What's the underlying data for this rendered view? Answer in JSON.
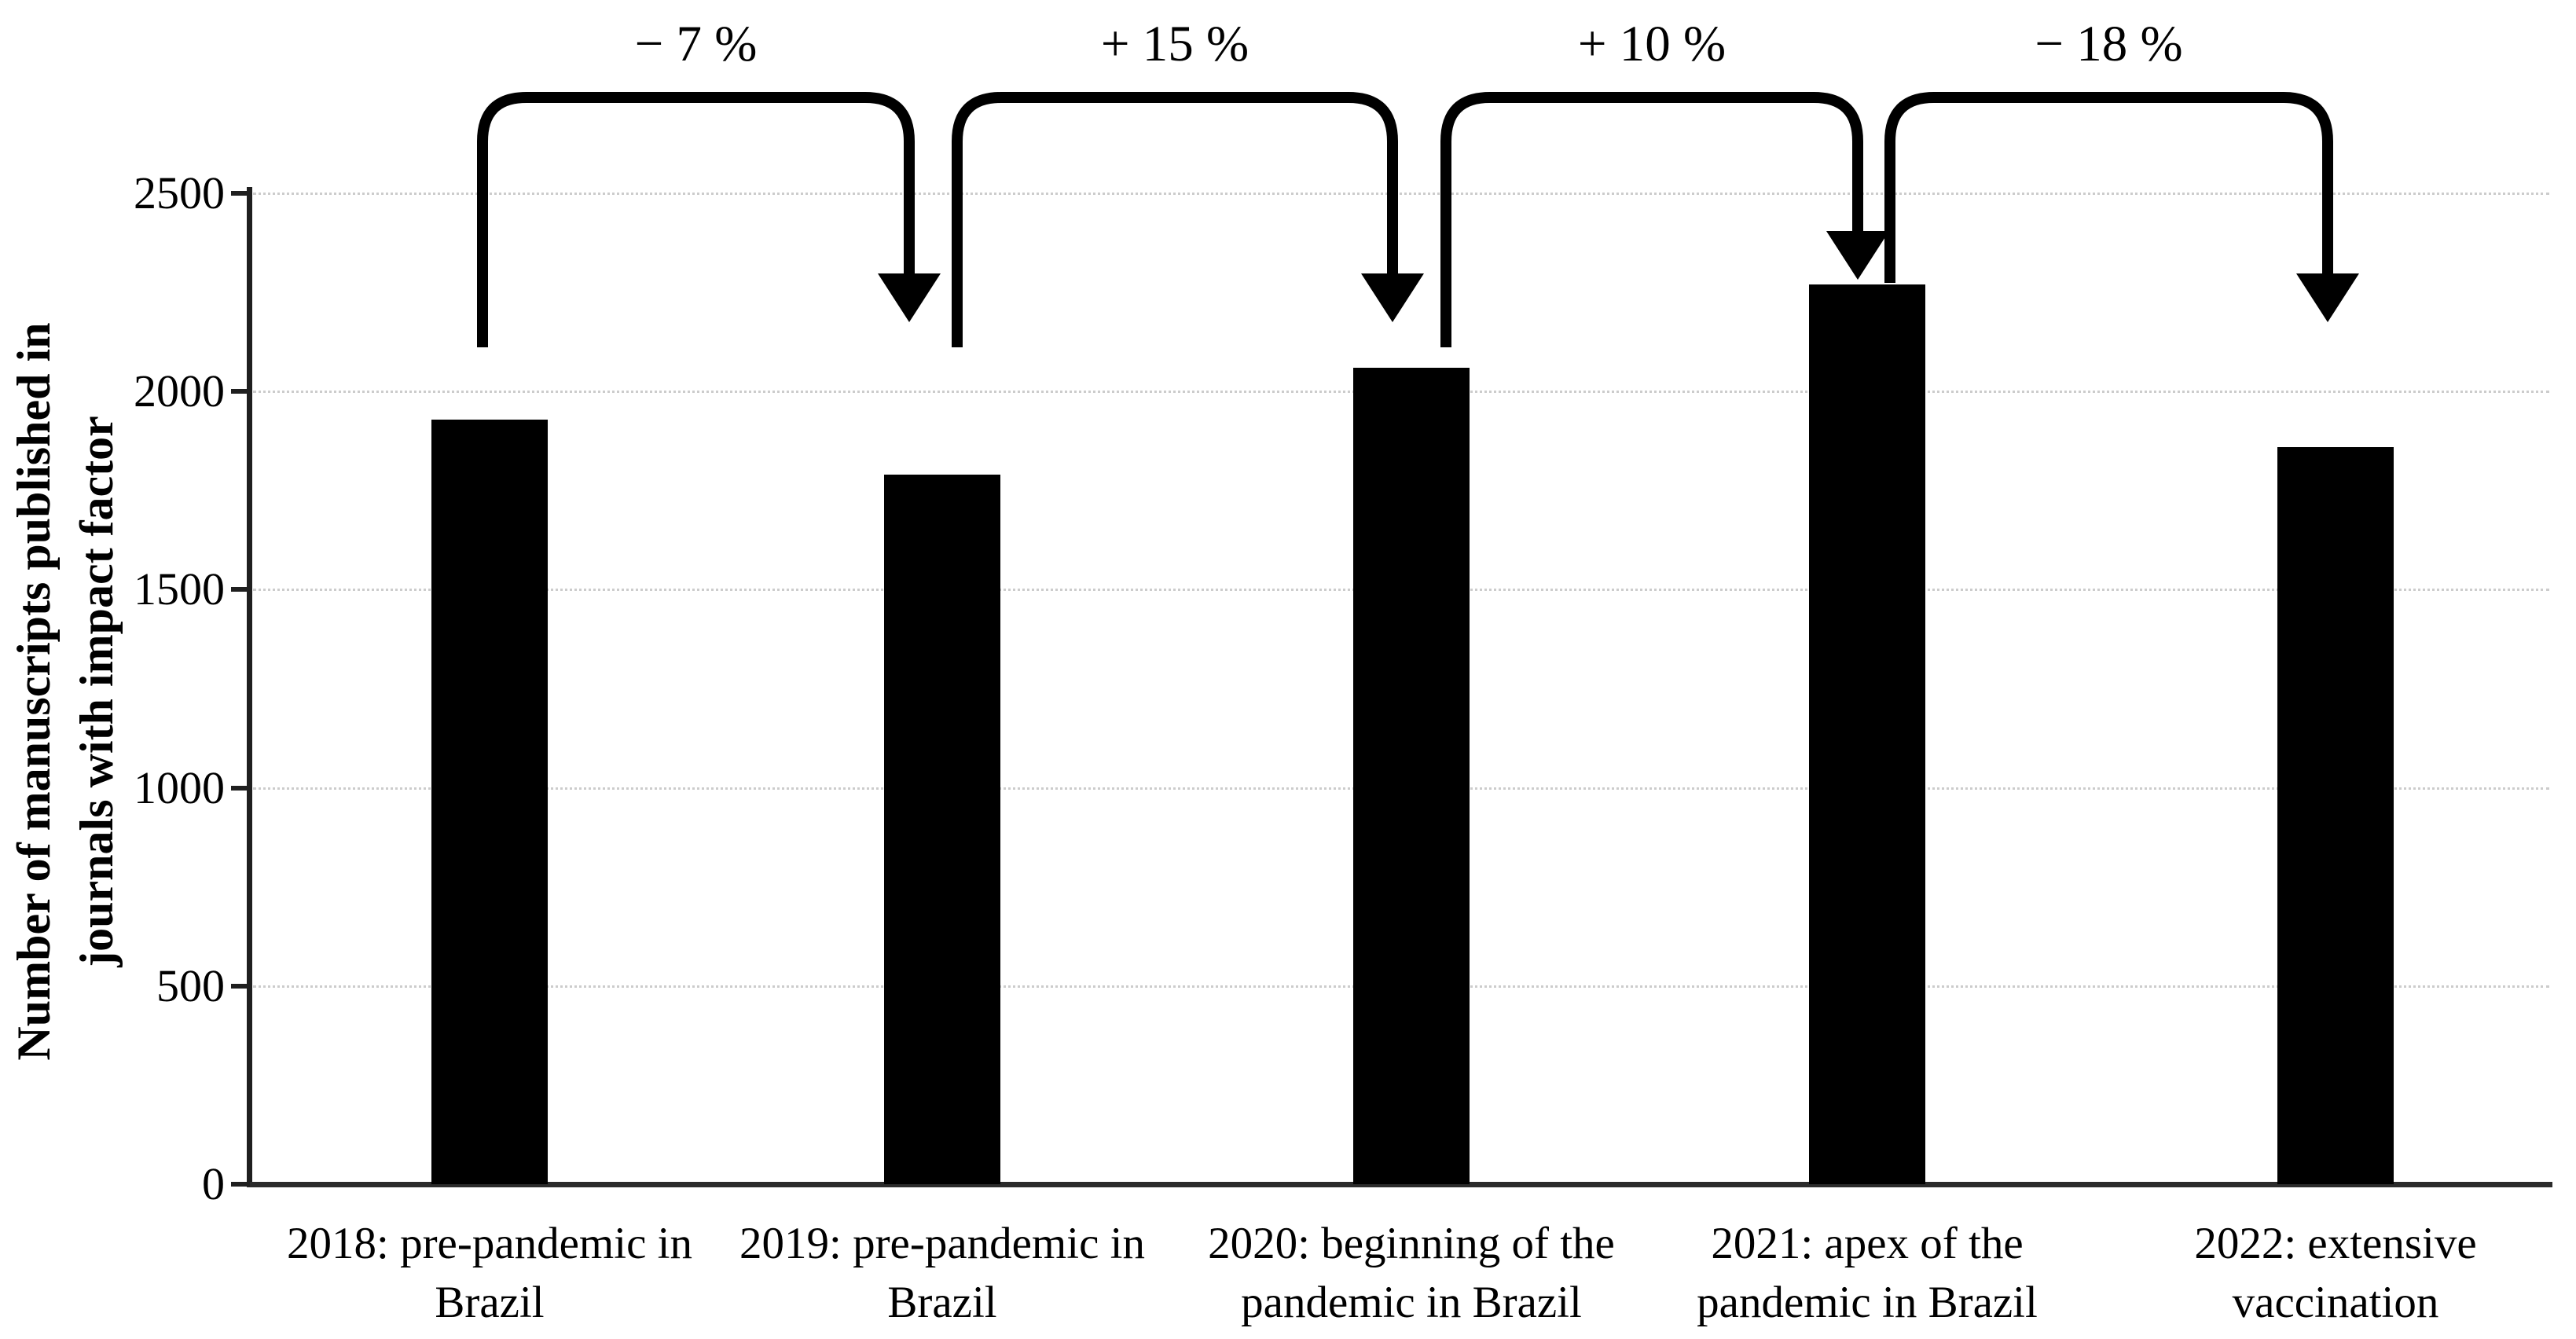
{
  "chart_data": {
    "type": "bar",
    "title": "",
    "xlabel": "",
    "ylabel": "Number of manuscripts published in journals with impact factor",
    "ylim": [
      0,
      2500
    ],
    "yticks": [
      0,
      500,
      1000,
      1500,
      2000,
      2500
    ],
    "grid": "horizontal-dotted",
    "legend": "none",
    "bar_color": "#000000",
    "categories": [
      "2018: pre-pandemic in Brazil",
      "2019: pre-pandemic in Brazil",
      "2020: beginning of the pandemic in Brazil",
      "2021: apex of the pandemic in Brazil",
      "2022: extensive vaccination"
    ],
    "values": [
      1930,
      1790,
      2060,
      2270,
      1860
    ],
    "annotations": [
      {
        "label": "− 7 %",
        "from": 0,
        "to": 1
      },
      {
        "label": "+ 15 %",
        "from": 1,
        "to": 2
      },
      {
        "label": "+ 10 %",
        "from": 2,
        "to": 3
      },
      {
        "label": "− 18 %",
        "from": 3,
        "to": 4
      }
    ]
  }
}
